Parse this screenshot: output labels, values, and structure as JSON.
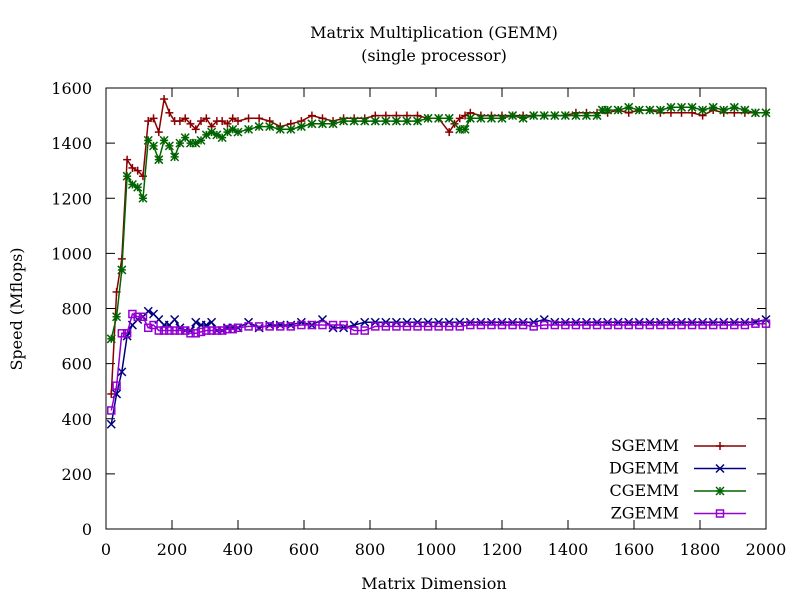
{
  "chart_data": {
    "type": "line",
    "title": "Matrix Multiplication (GEMM)",
    "subtitle": "(single processor)",
    "xlabel": "Matrix Dimension",
    "ylabel": "Speed (Mflops)",
    "xlim": [
      0,
      2000
    ],
    "ylim": [
      0,
      1600
    ],
    "xticks": [
      "0",
      "200",
      "400",
      "600",
      "800",
      "1000",
      "1200",
      "1400",
      "1600",
      "1800",
      "2000"
    ],
    "yticks": [
      "0",
      "200",
      "400",
      "600",
      "800",
      "1000",
      "1200",
      "1400",
      "1600"
    ],
    "grid": false,
    "legend_position": "bottom-right",
    "series": [
      {
        "name": "SGEMM",
        "color": "#8b0000",
        "marker": "plus",
        "x": [
          16,
          32,
          48,
          64,
          80,
          96,
          112,
          128,
          144,
          160,
          176,
          192,
          208,
          224,
          240,
          256,
          272,
          288,
          304,
          320,
          336,
          352,
          368,
          384,
          400,
          432,
          464,
          496,
          528,
          560,
          592,
          624,
          656,
          688,
          720,
          752,
          784,
          816,
          848,
          880,
          912,
          944,
          976,
          1008,
          1040,
          1056,
          1072,
          1088,
          1104,
          1136,
          1168,
          1200,
          1232,
          1264,
          1296,
          1328,
          1360,
          1392,
          1424,
          1456,
          1488,
          1520,
          1552,
          1584,
          1616,
          1648,
          1680,
          1712,
          1744,
          1776,
          1808,
          1840,
          1872,
          1904,
          1936,
          1968,
          2000
        ],
        "y": [
          490,
          860,
          980,
          1340,
          1310,
          1300,
          1280,
          1480,
          1490,
          1440,
          1560,
          1510,
          1480,
          1480,
          1490,
          1470,
          1450,
          1480,
          1490,
          1460,
          1480,
          1480,
          1470,
          1490,
          1480,
          1490,
          1490,
          1480,
          1460,
          1470,
          1480,
          1500,
          1490,
          1480,
          1490,
          1490,
          1490,
          1500,
          1500,
          1500,
          1500,
          1500,
          1490,
          1490,
          1440,
          1470,
          1490,
          1500,
          1510,
          1500,
          1500,
          1500,
          1500,
          1500,
          1500,
          1500,
          1500,
          1500,
          1510,
          1510,
          1510,
          1510,
          1520,
          1510,
          1520,
          1520,
          1510,
          1510,
          1510,
          1510,
          1500,
          1520,
          1510,
          1510,
          1510,
          1510,
          1510
        ]
      },
      {
        "name": "DGEMM",
        "color": "#000080",
        "marker": "cross",
        "x": [
          16,
          32,
          48,
          64,
          80,
          96,
          112,
          128,
          144,
          160,
          176,
          192,
          208,
          224,
          240,
          256,
          272,
          288,
          304,
          320,
          336,
          352,
          368,
          384,
          400,
          432,
          464,
          496,
          528,
          560,
          592,
          624,
          656,
          688,
          720,
          752,
          784,
          816,
          848,
          880,
          912,
          944,
          976,
          1008,
          1040,
          1072,
          1104,
          1136,
          1168,
          1200,
          1232,
          1264,
          1296,
          1328,
          1360,
          1392,
          1424,
          1456,
          1488,
          1520,
          1552,
          1584,
          1616,
          1648,
          1680,
          1712,
          1744,
          1776,
          1808,
          1840,
          1872,
          1904,
          1936,
          1968,
          2000
        ],
        "y": [
          380,
          490,
          570,
          700,
          740,
          760,
          770,
          790,
          780,
          760,
          740,
          740,
          760,
          730,
          720,
          720,
          750,
          740,
          740,
          750,
          720,
          720,
          730,
          730,
          730,
          750,
          730,
          740,
          740,
          740,
          750,
          740,
          760,
          730,
          730,
          740,
          750,
          750,
          750,
          750,
          750,
          750,
          750,
          750,
          750,
          750,
          750,
          750,
          750,
          750,
          750,
          750,
          750,
          760,
          750,
          750,
          750,
          750,
          750,
          750,
          750,
          750,
          750,
          750,
          750,
          750,
          750,
          750,
          750,
          750,
          750,
          750,
          750,
          750,
          760
        ]
      },
      {
        "name": "CGEMM",
        "color": "#006400",
        "marker": "star",
        "x": [
          16,
          32,
          48,
          64,
          80,
          96,
          112,
          128,
          144,
          160,
          176,
          192,
          208,
          224,
          240,
          256,
          272,
          288,
          304,
          320,
          336,
          352,
          368,
          384,
          400,
          432,
          464,
          496,
          528,
          560,
          592,
          624,
          656,
          688,
          720,
          752,
          784,
          816,
          848,
          880,
          912,
          944,
          976,
          1008,
          1040,
          1072,
          1088,
          1104,
          1136,
          1168,
          1200,
          1232,
          1264,
          1296,
          1328,
          1360,
          1392,
          1424,
          1456,
          1488,
          1504,
          1520,
          1552,
          1584,
          1616,
          1648,
          1680,
          1712,
          1744,
          1776,
          1808,
          1840,
          1872,
          1904,
          1936,
          1968,
          2000
        ],
        "y": [
          690,
          770,
          940,
          1280,
          1250,
          1240,
          1200,
          1410,
          1390,
          1340,
          1410,
          1390,
          1350,
          1400,
          1420,
          1400,
          1400,
          1410,
          1430,
          1440,
          1430,
          1420,
          1440,
          1450,
          1440,
          1450,
          1460,
          1460,
          1450,
          1450,
          1460,
          1470,
          1470,
          1470,
          1480,
          1480,
          1480,
          1480,
          1480,
          1480,
          1480,
          1480,
          1490,
          1490,
          1490,
          1450,
          1450,
          1490,
          1490,
          1490,
          1490,
          1500,
          1490,
          1500,
          1500,
          1500,
          1500,
          1500,
          1500,
          1500,
          1520,
          1520,
          1520,
          1530,
          1520,
          1520,
          1520,
          1530,
          1530,
          1530,
          1520,
          1530,
          1520,
          1530,
          1520,
          1510,
          1510
        ]
      },
      {
        "name": "ZGEMM",
        "color": "#9400d3",
        "marker": "square",
        "x": [
          16,
          32,
          48,
          64,
          80,
          96,
          112,
          128,
          144,
          160,
          176,
          192,
          208,
          224,
          240,
          256,
          272,
          288,
          304,
          320,
          336,
          352,
          368,
          384,
          400,
          432,
          464,
          496,
          528,
          560,
          592,
          624,
          656,
          688,
          720,
          752,
          784,
          816,
          848,
          880,
          912,
          944,
          976,
          1008,
          1040,
          1072,
          1104,
          1136,
          1168,
          1200,
          1232,
          1264,
          1296,
          1328,
          1360,
          1392,
          1424,
          1456,
          1488,
          1520,
          1552,
          1584,
          1616,
          1648,
          1680,
          1712,
          1744,
          1776,
          1808,
          1840,
          1872,
          1904,
          1936,
          1968,
          2000
        ],
        "y": [
          430,
          520,
          710,
          710,
          780,
          770,
          770,
          730,
          740,
          720,
          720,
          720,
          720,
          720,
          720,
          710,
          710,
          715,
          720,
          720,
          720,
          720,
          725,
          725,
          730,
          735,
          735,
          735,
          735,
          735,
          740,
          740,
          740,
          740,
          740,
          720,
          720,
          735,
          735,
          735,
          735,
          735,
          735,
          735,
          735,
          735,
          740,
          740,
          740,
          740,
          740,
          740,
          735,
          740,
          740,
          740,
          740,
          740,
          740,
          740,
          740,
          740,
          740,
          740,
          740,
          740,
          740,
          740,
          740,
          740,
          740,
          740,
          740,
          745,
          745
        ]
      }
    ]
  }
}
